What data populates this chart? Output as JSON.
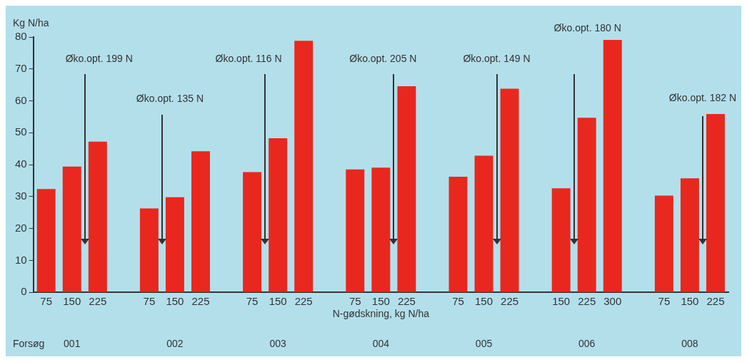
{
  "chart_data": {
    "type": "bar",
    "ylabel": "Kg N/ha",
    "xlabel": "N-gødskning, kg N/ha",
    "categories": [
      "75",
      "150",
      "225",
      null,
      "75",
      "150",
      "225",
      null,
      "75",
      "150",
      "225",
      null,
      "75",
      "150",
      "225",
      null,
      "75",
      "150",
      "225",
      null,
      "150",
      "225",
      "300",
      null,
      "75",
      "150",
      "225"
    ],
    "values": [
      32.4,
      39.4,
      47.2,
      null,
      26.3,
      29.8,
      44.2,
      null,
      37.7,
      48.3,
      78.8,
      null,
      38.5,
      39.1,
      64.6,
      null,
      36.2,
      42.8,
      63.8,
      null,
      32.6,
      54.7,
      79.1,
      null,
      30.3,
      35.7,
      55.9
    ],
    "color": "#e8281e",
    "ylim": [
      0,
      80
    ],
    "yticks": [
      0,
      10,
      20,
      30,
      40,
      50,
      60,
      70,
      80
    ],
    "grid": false,
    "annotations": [
      "Øko.opt. 199 N",
      "Øko.opt. 135 N",
      "Øko.opt. 116 N",
      "Øko.opt. 205 N",
      "Øko.opt. 149 N",
      "Øko.opt. 180 N",
      "Øko.opt. 182 N",
      "Forsøg",
      "001",
      "002",
      "003",
      "004",
      "005",
      "006",
      "008"
    ]
  }
}
